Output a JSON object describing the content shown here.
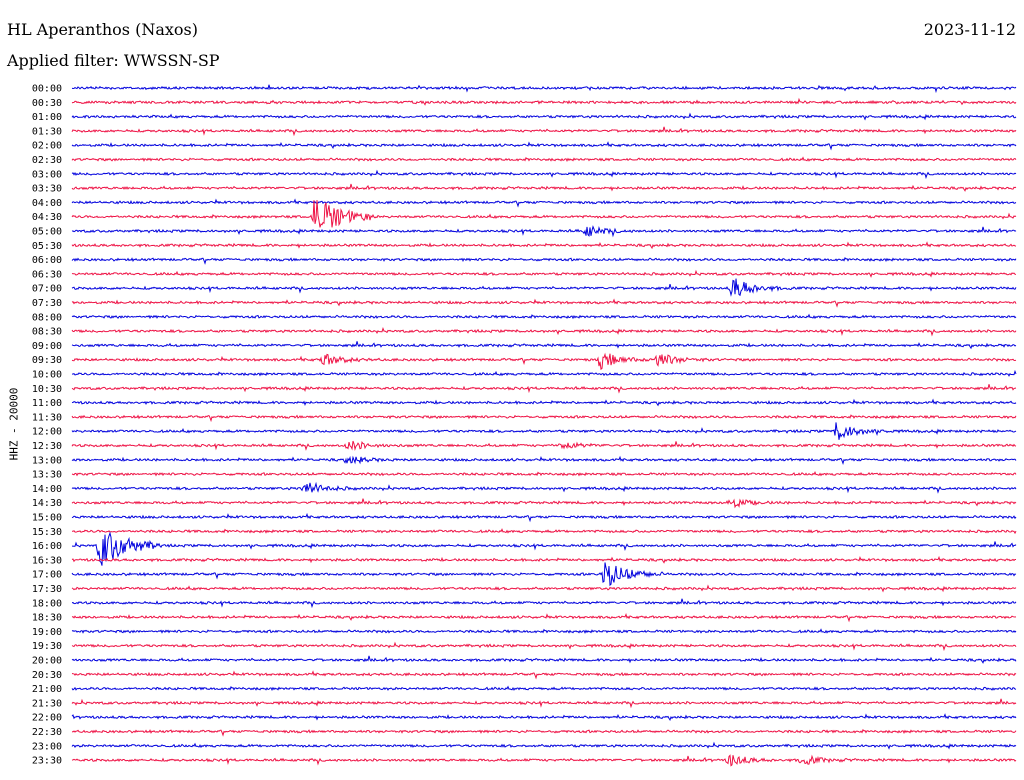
{
  "header": {
    "station": "HL Aperanthos (Naxos)",
    "date": "2023-11-12",
    "filter": "Applied filter: WWSSN-SP",
    "channel_label": "HHZ - 20000"
  },
  "colors": {
    "even": "#0000dd",
    "odd": "#ee1144"
  },
  "chart_data": {
    "type": "line",
    "title": "HL Aperanthos (Naxos)",
    "subtitle": "Applied filter: WWSSN-SP",
    "ylabel": "HHZ - 20000",
    "xlabel": "",
    "row_labels": [
      "00:00",
      "00:30",
      "01:00",
      "01:30",
      "02:00",
      "02:30",
      "03:00",
      "03:30",
      "04:00",
      "04:30",
      "05:00",
      "05:30",
      "06:00",
      "06:30",
      "07:00",
      "07:30",
      "08:00",
      "08:30",
      "09:00",
      "09:30",
      "10:00",
      "10:30",
      "11:00",
      "11:30",
      "12:00",
      "12:30",
      "13:00",
      "13:30",
      "14:00",
      "14:30",
      "15:00",
      "15:30",
      "16:00",
      "16:30",
      "17:00",
      "17:30",
      "18:00",
      "18:30",
      "19:00",
      "19:30",
      "20:00",
      "20:30",
      "21:00",
      "21:30",
      "22:00",
      "22:30",
      "23:00",
      "23:30"
    ],
    "events": [
      {
        "row": "04:30",
        "minute": 7.7,
        "amplitude": 1.0
      },
      {
        "row": "05:00",
        "minute": 16.3,
        "amplitude": 0.3
      },
      {
        "row": "07:00",
        "minute": 21.0,
        "amplitude": 0.5
      },
      {
        "row": "09:30",
        "minute": 8.0,
        "amplitude": 0.3
      },
      {
        "row": "09:30",
        "minute": 16.8,
        "amplitude": 0.4
      },
      {
        "row": "09:30",
        "minute": 18.6,
        "amplitude": 0.35
      },
      {
        "row": "12:00",
        "minute": 24.3,
        "amplitude": 0.45
      },
      {
        "row": "12:30",
        "minute": 8.8,
        "amplitude": 0.25
      },
      {
        "row": "12:30",
        "minute": 15.6,
        "amplitude": 0.2
      },
      {
        "row": "13:00",
        "minute": 8.8,
        "amplitude": 0.2
      },
      {
        "row": "14:00",
        "minute": 7.4,
        "amplitude": 0.35
      },
      {
        "row": "14:30",
        "minute": 20.9,
        "amplitude": 0.25
      },
      {
        "row": "16:00",
        "minute": 0.9,
        "amplitude": 1.0
      },
      {
        "row": "17:00",
        "minute": 16.9,
        "amplitude": 0.7
      },
      {
        "row": "23:30",
        "minute": 20.9,
        "amplitude": 0.3
      },
      {
        "row": "23:30",
        "minute": 23.2,
        "amplitude": 0.25
      }
    ]
  }
}
